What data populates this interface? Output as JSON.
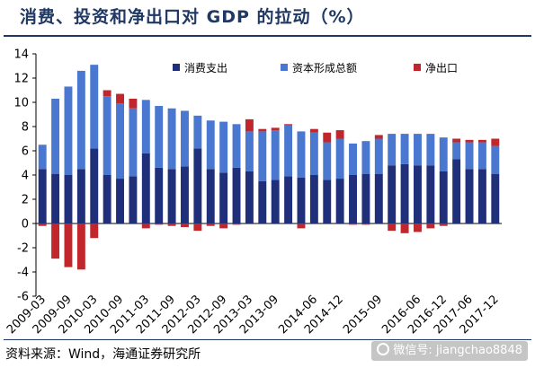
{
  "title": "消费、投资和净出口对 GDP 的拉动（%）",
  "source": "资料来源：Wind，海通证券研究所",
  "watermark": "微信号: jiangchao8848",
  "colors": {
    "consumption": "#1f2f7a",
    "investment": "#4a78d0",
    "net_exports": "#c0262c",
    "axis": "#000000"
  },
  "chart_data": {
    "type": "bar",
    "stacked": true,
    "title": "消费、投资和净出口对 GDP 的拉动（%）",
    "ylim": [
      -6,
      14
    ],
    "yticks": [
      -6,
      -4,
      -2,
      0,
      2,
      4,
      6,
      8,
      10,
      12,
      14
    ],
    "legend_position": "top-right",
    "x_tick_labels": [
      "2009-03",
      "2009-09",
      "2010-03",
      "2010-09",
      "2011-03",
      "2011-09",
      "2012-03",
      "2012-09",
      "2013-03",
      "2013-09",
      "2014-06",
      "2014-12",
      "2015-09",
      "2016-06",
      "2016-12",
      "2017-06",
      "2017-12"
    ],
    "categories": [
      "2009-03",
      "2009-06",
      "2009-09",
      "2009-12",
      "2010-03",
      "2010-06",
      "2010-09",
      "2010-12",
      "2011-03",
      "2011-06",
      "2011-09",
      "2011-12",
      "2012-03",
      "2012-06",
      "2012-09",
      "2012-12",
      "2013-03",
      "2013-06",
      "2013-09",
      "2013-12",
      "2014-03",
      "2014-06",
      "2014-09",
      "2014-12",
      "2015-03",
      "2015-06",
      "2015-09",
      "2015-12",
      "2016-03",
      "2016-06",
      "2016-09",
      "2016-12",
      "2017-03",
      "2017-06",
      "2017-09",
      "2017-12"
    ],
    "series": [
      {
        "name": "消费支出",
        "values": [
          4.5,
          4.1,
          4.0,
          4.5,
          6.2,
          4.0,
          3.7,
          3.9,
          5.8,
          4.6,
          4.5,
          4.7,
          6.2,
          4.5,
          4.2,
          4.6,
          4.3,
          3.5,
          3.6,
          3.9,
          3.8,
          4.0,
          3.6,
          3.7,
          4.0,
          4.1,
          4.1,
          4.8,
          4.9,
          4.8,
          4.8,
          4.3,
          5.3,
          4.5,
          4.5,
          4.1
        ]
      },
      {
        "name": "资本形成总额",
        "values": [
          2.0,
          6.2,
          7.3,
          8.1,
          6.9,
          6.5,
          6.2,
          5.6,
          4.4,
          5.1,
          5.0,
          4.6,
          2.7,
          4.0,
          4.2,
          3.6,
          3.3,
          4.1,
          4.1,
          4.2,
          3.8,
          3.5,
          3.1,
          3.3,
          2.6,
          2.7,
          2.9,
          2.6,
          2.5,
          2.6,
          2.6,
          2.8,
          1.4,
          2.2,
          2.2,
          2.3
        ]
      },
      {
        "name": "净出口",
        "values": [
          -0.2,
          -2.9,
          -3.6,
          -3.8,
          -1.2,
          0.5,
          0.8,
          0.8,
          -0.4,
          -0.1,
          -0.2,
          -0.3,
          -0.6,
          -0.2,
          -0.4,
          -0.1,
          1.0,
          0.2,
          0.2,
          0.1,
          -0.4,
          0.3,
          0.8,
          0.7,
          -0.1,
          -0.1,
          0.3,
          -0.6,
          -0.8,
          -0.7,
          -0.4,
          -0.2,
          0.3,
          0.2,
          0.2,
          0.6
        ]
      }
    ]
  }
}
